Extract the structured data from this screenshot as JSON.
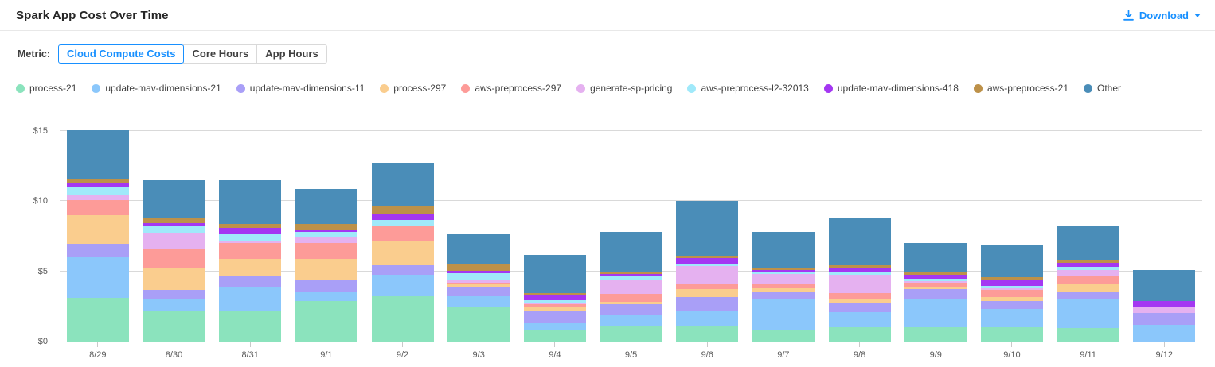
{
  "header": {
    "title": "Spark App Cost Over Time",
    "download_label": "Download"
  },
  "metric": {
    "label": "Metric:",
    "options": [
      {
        "label": "Cloud Compute Costs",
        "active": true
      },
      {
        "label": "Core Hours",
        "active": false
      },
      {
        "label": "App Hours",
        "active": false
      }
    ]
  },
  "colors": {
    "accent": "#1890ff",
    "gridline": "#d9d9d9",
    "axis_line": "#cccccc",
    "axis_text": "#595959",
    "title_text": "#262626"
  },
  "chart_data": {
    "type": "bar",
    "stacked": true,
    "title": "Spark App Cost Over Time",
    "xlabel": "",
    "ylabel": "",
    "ylim": [
      0,
      15
    ],
    "yticks": [
      0,
      5,
      10,
      15
    ],
    "ytick_labels": [
      "$0",
      "$5",
      "$10",
      "$15"
    ],
    "grid": true,
    "legend_position": "top",
    "categories": [
      "8/29",
      "8/30",
      "8/31",
      "9/1",
      "9/2",
      "9/3",
      "9/4",
      "9/5",
      "9/6",
      "9/7",
      "9/8",
      "9/9",
      "9/10",
      "9/11",
      "9/12"
    ],
    "series": [
      {
        "name": "process-21",
        "color": "#8BE3BD",
        "values": [
          3.13,
          2.19,
          2.22,
          2.87,
          3.21,
          2.42,
          0.81,
          1.09,
          1.09,
          0.87,
          1.0,
          1.0,
          1.0,
          0.95,
          0.0
        ]
      },
      {
        "name": "update-mav-dimensions-21",
        "color": "#8BC7FB",
        "values": [
          2.85,
          0.83,
          1.7,
          0.68,
          1.53,
          0.85,
          0.47,
          0.85,
          1.13,
          2.11,
          1.08,
          2.07,
          1.32,
          2.07,
          1.19
        ]
      },
      {
        "name": "update-mav-dimensions-11",
        "color": "#A99FF7",
        "values": [
          0.98,
          0.64,
          0.79,
          0.88,
          0.75,
          0.62,
          0.85,
          0.72,
          0.95,
          0.57,
          0.71,
          0.67,
          0.57,
          0.56,
          0.85
        ]
      },
      {
        "name": "process-297",
        "color": "#FACD8E",
        "values": [
          2.05,
          1.56,
          1.19,
          1.47,
          1.64,
          0.19,
          0.29,
          0.19,
          0.57,
          0.22,
          0.23,
          0.15,
          0.28,
          0.5,
          0.0
        ]
      },
      {
        "name": "aws-preprocess-297",
        "color": "#FD9B98",
        "values": [
          1.08,
          1.36,
          1.13,
          1.13,
          1.09,
          0.13,
          0.26,
          0.56,
          0.37,
          0.34,
          0.43,
          0.3,
          0.53,
          0.56,
          0.0
        ]
      },
      {
        "name": "generate-sp-pricing",
        "color": "#E5B1F0",
        "values": [
          0.4,
          1.17,
          0.16,
          0.42,
          0.0,
          0.13,
          0.11,
          0.95,
          1.27,
          0.72,
          1.32,
          0.11,
          0.07,
          0.45,
          0.43
        ]
      },
      {
        "name": "aws-preprocess-l2-32013",
        "color": "#A0E9FA",
        "values": [
          0.49,
          0.5,
          0.47,
          0.38,
          0.46,
          0.53,
          0.15,
          0.28,
          0.15,
          0.13,
          0.14,
          0.19,
          0.21,
          0.25,
          0.0
        ]
      },
      {
        "name": "update-mav-dimensions-418",
        "color": "#A437F2",
        "values": [
          0.26,
          0.2,
          0.41,
          0.17,
          0.43,
          0.18,
          0.38,
          0.19,
          0.41,
          0.13,
          0.37,
          0.25,
          0.36,
          0.24,
          0.42
        ]
      },
      {
        "name": "aws-preprocess-21",
        "color": "#BD9149",
        "values": [
          0.36,
          0.32,
          0.32,
          0.36,
          0.57,
          0.51,
          0.13,
          0.13,
          0.15,
          0.15,
          0.19,
          0.26,
          0.24,
          0.23,
          0.0
        ]
      },
      {
        "name": "Other",
        "color": "#4A8DB8",
        "values": [
          3.45,
          2.79,
          3.11,
          2.54,
          3.07,
          2.14,
          2.74,
          2.83,
          3.91,
          2.55,
          3.32,
          2.03,
          2.32,
          2.41,
          2.2
        ]
      }
    ]
  }
}
